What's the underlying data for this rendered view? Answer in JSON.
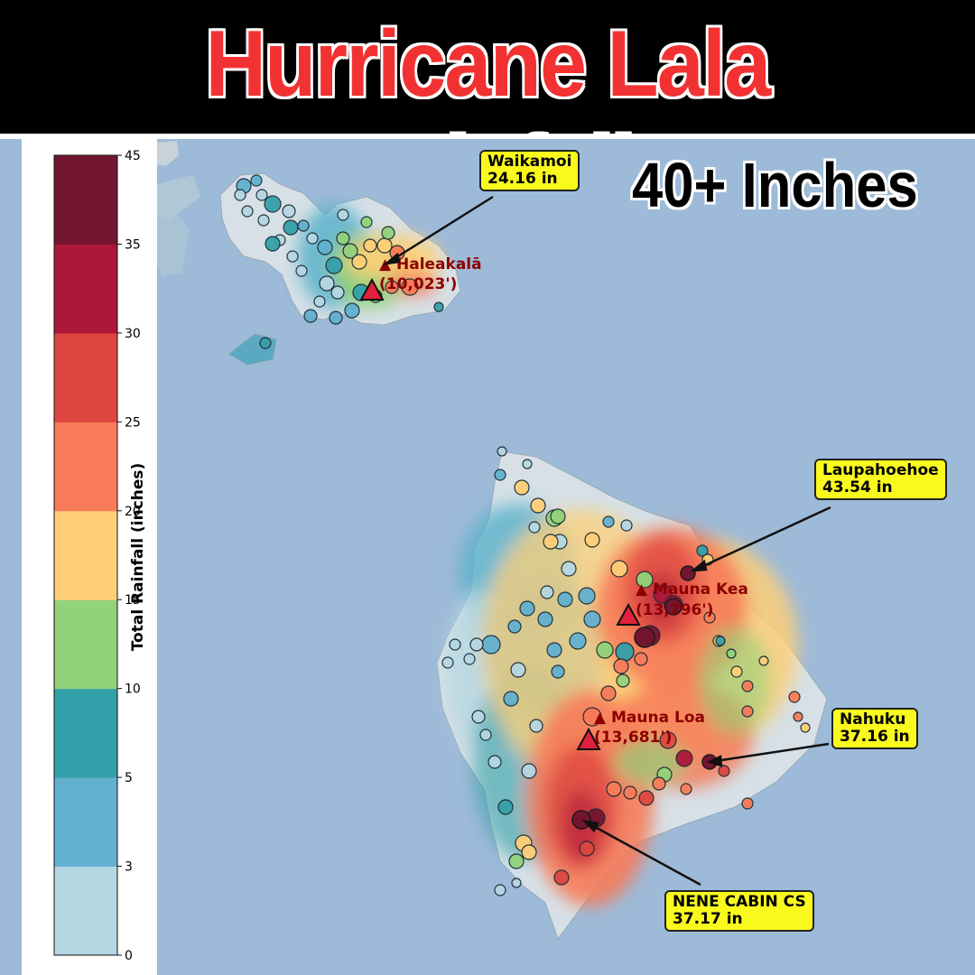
{
  "title": "Hurricane Lala Rainfall",
  "headline": "40+ Inches",
  "colorbar": {
    "label": "Total Rainfall (inches)",
    "ticks": [
      "0",
      "3",
      "5",
      "10",
      "15",
      "20",
      "25",
      "30",
      "35",
      "45"
    ],
    "colors": [
      "#b5d7e2",
      "#62b0d0",
      "#34a0a9",
      "#92d27a",
      "#fecf77",
      "#f77b59",
      "#dd4640",
      "#ad1738",
      "#741530"
    ]
  },
  "peaks": [
    {
      "name": "Haleakalā",
      "elevation": "(10,023')"
    },
    {
      "name": "Mauna Kea",
      "elevation": "(13,796')"
    },
    {
      "name": "Mauna Loa",
      "elevation": "(13,681')"
    }
  ],
  "callouts": [
    {
      "station": "Waikamoi",
      "total": "24.16 in"
    },
    {
      "station": "Laupahoehoe",
      "total": "43.54 in"
    },
    {
      "station": "Nahuku",
      "total": "37.16 in"
    },
    {
      "station": "NENE CABIN CS",
      "total": "37.17 in"
    }
  ],
  "colors": {
    "ocean": "#9dbad8",
    "title": "#f23232",
    "callout_bg": "#f9f91e",
    "peak_marker": "#e0203c",
    "peak_label": "#8b0000"
  }
}
